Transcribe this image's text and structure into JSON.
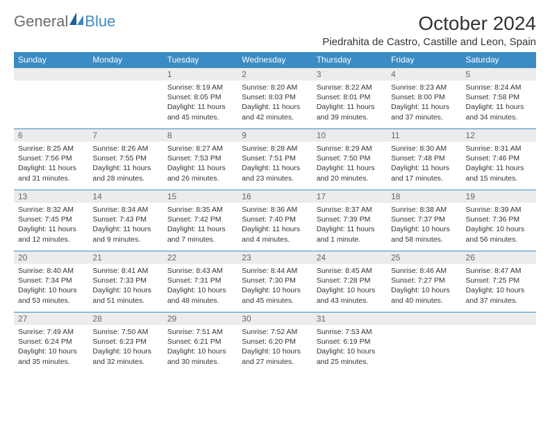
{
  "logo": {
    "text1": "General",
    "text2": "Blue"
  },
  "title": "October 2024",
  "location": "Piedrahita de Castro, Castille and Leon, Spain",
  "day_headers": [
    "Sunday",
    "Monday",
    "Tuesday",
    "Wednesday",
    "Thursday",
    "Friday",
    "Saturday"
  ],
  "colors": {
    "header_bg": "#3b8bc4",
    "header_text": "#ffffff",
    "daynum_bg": "#ececec",
    "row_border": "#3b8bc4",
    "body_text": "#333333"
  },
  "weeks": [
    [
      {
        "n": "",
        "sunrise": "",
        "sunset": "",
        "daylight": ""
      },
      {
        "n": "",
        "sunrise": "",
        "sunset": "",
        "daylight": ""
      },
      {
        "n": "1",
        "sunrise": "Sunrise: 8:19 AM",
        "sunset": "Sunset: 8:05 PM",
        "daylight": "Daylight: 11 hours and 45 minutes."
      },
      {
        "n": "2",
        "sunrise": "Sunrise: 8:20 AM",
        "sunset": "Sunset: 8:03 PM",
        "daylight": "Daylight: 11 hours and 42 minutes."
      },
      {
        "n": "3",
        "sunrise": "Sunrise: 8:22 AM",
        "sunset": "Sunset: 8:01 PM",
        "daylight": "Daylight: 11 hours and 39 minutes."
      },
      {
        "n": "4",
        "sunrise": "Sunrise: 8:23 AM",
        "sunset": "Sunset: 8:00 PM",
        "daylight": "Daylight: 11 hours and 37 minutes."
      },
      {
        "n": "5",
        "sunrise": "Sunrise: 8:24 AM",
        "sunset": "Sunset: 7:58 PM",
        "daylight": "Daylight: 11 hours and 34 minutes."
      }
    ],
    [
      {
        "n": "6",
        "sunrise": "Sunrise: 8:25 AM",
        "sunset": "Sunset: 7:56 PM",
        "daylight": "Daylight: 11 hours and 31 minutes."
      },
      {
        "n": "7",
        "sunrise": "Sunrise: 8:26 AM",
        "sunset": "Sunset: 7:55 PM",
        "daylight": "Daylight: 11 hours and 28 minutes."
      },
      {
        "n": "8",
        "sunrise": "Sunrise: 8:27 AM",
        "sunset": "Sunset: 7:53 PM",
        "daylight": "Daylight: 11 hours and 26 minutes."
      },
      {
        "n": "9",
        "sunrise": "Sunrise: 8:28 AM",
        "sunset": "Sunset: 7:51 PM",
        "daylight": "Daylight: 11 hours and 23 minutes."
      },
      {
        "n": "10",
        "sunrise": "Sunrise: 8:29 AM",
        "sunset": "Sunset: 7:50 PM",
        "daylight": "Daylight: 11 hours and 20 minutes."
      },
      {
        "n": "11",
        "sunrise": "Sunrise: 8:30 AM",
        "sunset": "Sunset: 7:48 PM",
        "daylight": "Daylight: 11 hours and 17 minutes."
      },
      {
        "n": "12",
        "sunrise": "Sunrise: 8:31 AM",
        "sunset": "Sunset: 7:46 PM",
        "daylight": "Daylight: 11 hours and 15 minutes."
      }
    ],
    [
      {
        "n": "13",
        "sunrise": "Sunrise: 8:32 AM",
        "sunset": "Sunset: 7:45 PM",
        "daylight": "Daylight: 11 hours and 12 minutes."
      },
      {
        "n": "14",
        "sunrise": "Sunrise: 8:34 AM",
        "sunset": "Sunset: 7:43 PM",
        "daylight": "Daylight: 11 hours and 9 minutes."
      },
      {
        "n": "15",
        "sunrise": "Sunrise: 8:35 AM",
        "sunset": "Sunset: 7:42 PM",
        "daylight": "Daylight: 11 hours and 7 minutes."
      },
      {
        "n": "16",
        "sunrise": "Sunrise: 8:36 AM",
        "sunset": "Sunset: 7:40 PM",
        "daylight": "Daylight: 11 hours and 4 minutes."
      },
      {
        "n": "17",
        "sunrise": "Sunrise: 8:37 AM",
        "sunset": "Sunset: 7:39 PM",
        "daylight": "Daylight: 11 hours and 1 minute."
      },
      {
        "n": "18",
        "sunrise": "Sunrise: 8:38 AM",
        "sunset": "Sunset: 7:37 PM",
        "daylight": "Daylight: 10 hours and 58 minutes."
      },
      {
        "n": "19",
        "sunrise": "Sunrise: 8:39 AM",
        "sunset": "Sunset: 7:36 PM",
        "daylight": "Daylight: 10 hours and 56 minutes."
      }
    ],
    [
      {
        "n": "20",
        "sunrise": "Sunrise: 8:40 AM",
        "sunset": "Sunset: 7:34 PM",
        "daylight": "Daylight: 10 hours and 53 minutes."
      },
      {
        "n": "21",
        "sunrise": "Sunrise: 8:41 AM",
        "sunset": "Sunset: 7:33 PM",
        "daylight": "Daylight: 10 hours and 51 minutes."
      },
      {
        "n": "22",
        "sunrise": "Sunrise: 8:43 AM",
        "sunset": "Sunset: 7:31 PM",
        "daylight": "Daylight: 10 hours and 48 minutes."
      },
      {
        "n": "23",
        "sunrise": "Sunrise: 8:44 AM",
        "sunset": "Sunset: 7:30 PM",
        "daylight": "Daylight: 10 hours and 45 minutes."
      },
      {
        "n": "24",
        "sunrise": "Sunrise: 8:45 AM",
        "sunset": "Sunset: 7:28 PM",
        "daylight": "Daylight: 10 hours and 43 minutes."
      },
      {
        "n": "25",
        "sunrise": "Sunrise: 8:46 AM",
        "sunset": "Sunset: 7:27 PM",
        "daylight": "Daylight: 10 hours and 40 minutes."
      },
      {
        "n": "26",
        "sunrise": "Sunrise: 8:47 AM",
        "sunset": "Sunset: 7:25 PM",
        "daylight": "Daylight: 10 hours and 37 minutes."
      }
    ],
    [
      {
        "n": "27",
        "sunrise": "Sunrise: 7:49 AM",
        "sunset": "Sunset: 6:24 PM",
        "daylight": "Daylight: 10 hours and 35 minutes."
      },
      {
        "n": "28",
        "sunrise": "Sunrise: 7:50 AM",
        "sunset": "Sunset: 6:23 PM",
        "daylight": "Daylight: 10 hours and 32 minutes."
      },
      {
        "n": "29",
        "sunrise": "Sunrise: 7:51 AM",
        "sunset": "Sunset: 6:21 PM",
        "daylight": "Daylight: 10 hours and 30 minutes."
      },
      {
        "n": "30",
        "sunrise": "Sunrise: 7:52 AM",
        "sunset": "Sunset: 6:20 PM",
        "daylight": "Daylight: 10 hours and 27 minutes."
      },
      {
        "n": "31",
        "sunrise": "Sunrise: 7:53 AM",
        "sunset": "Sunset: 6:19 PM",
        "daylight": "Daylight: 10 hours and 25 minutes."
      },
      {
        "n": "",
        "sunrise": "",
        "sunset": "",
        "daylight": ""
      },
      {
        "n": "",
        "sunrise": "",
        "sunset": "",
        "daylight": ""
      }
    ]
  ]
}
